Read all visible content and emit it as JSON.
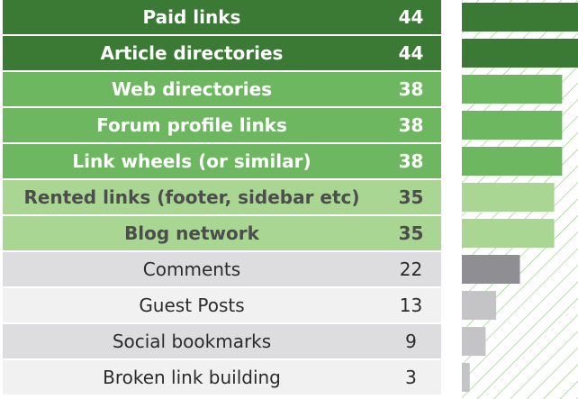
{
  "chart_data": {
    "type": "bar",
    "orientation": "horizontal",
    "categories": [
      "Paid links",
      "Article directories",
      "Web directories",
      "Forum profile links",
      "Link wheels (or similar)",
      "Rented links (footer, sidebar etc)",
      "Blog network",
      "Comments",
      "Guest Posts",
      "Social bookmarks",
      "Broken link building"
    ],
    "values": [
      44,
      44,
      38,
      38,
      38,
      35,
      35,
      22,
      13,
      9,
      3
    ],
    "xlim": [
      0,
      44
    ],
    "grid": false,
    "legend": "none",
    "row_styles": [
      {
        "bg": "#3a7a35",
        "text": "#ffffff",
        "bar": "#3a7a35",
        "bold": true
      },
      {
        "bg": "#3a7a35",
        "text": "#ffffff",
        "bar": "#3a7a35",
        "bold": true
      },
      {
        "bg": "#6db760",
        "text": "#ffffff",
        "bar": "#6db760",
        "bold": true
      },
      {
        "bg": "#6db760",
        "text": "#ffffff",
        "bar": "#6db760",
        "bold": true
      },
      {
        "bg": "#6db760",
        "text": "#ffffff",
        "bar": "#6db760",
        "bold": true
      },
      {
        "bg": "#a9d693",
        "text": "#4d4d4d",
        "bar": "#a9d693",
        "bold": true
      },
      {
        "bg": "#a9d693",
        "text": "#4d4d4d",
        "bar": "#a9d693",
        "bold": true
      },
      {
        "bg": "#dddde0",
        "text": "#2b2b2b",
        "bar": "#8f8f93",
        "bold": false
      },
      {
        "bg": "#f1f1f2",
        "text": "#2b2b2b",
        "bar": "#c4c4c7",
        "bold": false
      },
      {
        "bg": "#dddde0",
        "text": "#2b2b2b",
        "bar": "#c4c4c7",
        "bold": false
      },
      {
        "bg": "#f1f1f2",
        "text": "#2b2b2b",
        "bar": "#c4c4c7",
        "bold": false
      }
    ],
    "hatch_color": "#8cc77a"
  }
}
